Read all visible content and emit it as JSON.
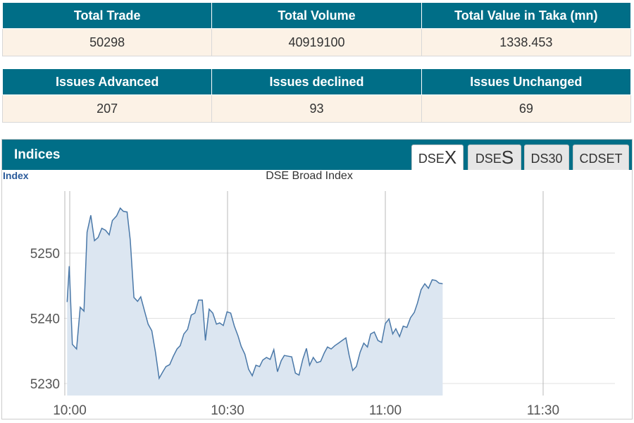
{
  "summary": {
    "headers": [
      "Total Trade",
      "Total Volume",
      "Total Value in Taka (mn)"
    ],
    "values": [
      "50298",
      "40919100",
      "1338.453"
    ]
  },
  "issues": {
    "headers": [
      "Issues Advanced",
      "Issues declined",
      "Issues Unchanged"
    ],
    "values": [
      "207",
      "93",
      "69"
    ]
  },
  "indices": {
    "title": "Indices",
    "tabs": [
      {
        "prefix": "DSE",
        "suffix": "X",
        "active": true
      },
      {
        "prefix": "DSE",
        "suffix": "S",
        "active": false
      },
      {
        "prefix": "DS30",
        "suffix": "",
        "active": false
      },
      {
        "prefix": "CDSET",
        "suffix": "",
        "active": false
      }
    ]
  },
  "colors": {
    "header_bg": "#006e87",
    "row_bg": "#fcf2e6",
    "line": "#4a78a8",
    "area_fill": "#dce6f1"
  },
  "chart_data": {
    "type": "area",
    "title": "DSE Broad Index",
    "ylabel": "Index",
    "xlabel": "",
    "x_ticks": [
      "10:00",
      "10:30",
      "11:00",
      "11:30"
    ],
    "y_ticks": [
      5230,
      5240,
      5250
    ],
    "ylim": [
      5228,
      5260
    ],
    "xlim_minutes": [
      -1,
      46
    ],
    "grid": true,
    "series": [
      {
        "points": [
          [
            -0.5,
            5242.5
          ],
          [
            -0.1,
            5248.0
          ],
          [
            0.5,
            5236.0
          ],
          [
            1.3,
            5235.3
          ],
          [
            2.0,
            5241.7
          ],
          [
            2.7,
            5241.1
          ],
          [
            3.3,
            5253.2
          ],
          [
            4.0,
            5255.8
          ],
          [
            4.7,
            5251.9
          ],
          [
            5.4,
            5252.4
          ],
          [
            6.1,
            5253.8
          ],
          [
            6.8,
            5253.5
          ],
          [
            7.5,
            5252.8
          ],
          [
            8.1,
            5255.0
          ],
          [
            8.9,
            5255.7
          ],
          [
            9.6,
            5256.9
          ],
          [
            10.2,
            5256.4
          ],
          [
            10.9,
            5256.3
          ],
          [
            11.5,
            5252.0
          ],
          [
            12.2,
            5243.2
          ],
          [
            12.9,
            5242.6
          ],
          [
            13.5,
            5243.3
          ],
          [
            14.2,
            5241.2
          ],
          [
            14.9,
            5239.1
          ],
          [
            15.6,
            5238.1
          ],
          [
            16.3,
            5234.8
          ],
          [
            17.0,
            5230.8
          ],
          [
            17.7,
            5231.8
          ],
          [
            18.3,
            5232.6
          ],
          [
            19.0,
            5232.9
          ],
          [
            19.7,
            5234.2
          ],
          [
            20.4,
            5235.3
          ],
          [
            21.0,
            5235.8
          ],
          [
            21.7,
            5237.6
          ],
          [
            22.4,
            5238.3
          ],
          [
            23.1,
            5240.5
          ],
          [
            23.8,
            5240.8
          ],
          [
            24.5,
            5242.8
          ],
          [
            25.2,
            5242.8
          ],
          [
            25.8,
            5236.6
          ],
          [
            26.5,
            5241.4
          ],
          [
            27.2,
            5240.8
          ],
          [
            27.9,
            5239.1
          ],
          [
            28.5,
            5239.3
          ],
          [
            29.2,
            5238.9
          ],
          [
            29.9,
            5241.0
          ],
          [
            30.6,
            5240.8
          ],
          [
            31.3,
            5238.8
          ],
          [
            32.0,
            5237.3
          ],
          [
            32.6,
            5235.7
          ],
          [
            33.3,
            5234.5
          ],
          [
            34.0,
            5232.2
          ],
          [
            34.7,
            5231.2
          ],
          [
            35.4,
            5232.8
          ],
          [
            36.1,
            5232.6
          ],
          [
            36.7,
            5233.6
          ],
          [
            37.4,
            5234.0
          ],
          [
            38.1,
            5233.7
          ],
          [
            38.8,
            5235.2
          ],
          [
            39.5,
            5231.8
          ],
          [
            40.2,
            5233.5
          ],
          [
            40.8,
            5234.3
          ],
          [
            41.5,
            5234.2
          ],
          [
            42.2,
            5234.1
          ],
          [
            42.9,
            5231.6
          ],
          [
            43.6,
            5231.3
          ],
          [
            44.3,
            5233.7
          ],
          [
            45.0,
            5235.4
          ],
          [
            45.6,
            5232.8
          ],
          [
            46.3,
            5234.0
          ],
          [
            47.0,
            5233.2
          ],
          [
            47.7,
            5233.4
          ],
          [
            48.4,
            5234.7
          ],
          [
            49.0,
            5235.6
          ],
          [
            49.7,
            5235.3
          ],
          [
            50.4,
            5235.8
          ],
          [
            51.1,
            5236.2
          ],
          [
            51.8,
            5236.6
          ],
          [
            52.5,
            5237.0
          ],
          [
            53.1,
            5234.4
          ],
          [
            53.8,
            5232.0
          ],
          [
            54.5,
            5232.6
          ],
          [
            55.2,
            5234.8
          ],
          [
            55.9,
            5236.2
          ],
          [
            56.6,
            5235.6
          ],
          [
            57.2,
            5237.6
          ],
          [
            57.9,
            5237.9
          ],
          [
            58.6,
            5236.6
          ],
          [
            59.3,
            5236.3
          ],
          [
            60.0,
            5239.2
          ],
          [
            60.7,
            5239.9
          ],
          [
            61.4,
            5237.6
          ],
          [
            62.0,
            5238.4
          ],
          [
            62.7,
            5237.2
          ],
          [
            63.4,
            5238.8
          ],
          [
            64.1,
            5238.6
          ],
          [
            64.8,
            5240.1
          ],
          [
            65.5,
            5240.9
          ],
          [
            66.1,
            5242.3
          ],
          [
            66.8,
            5244.4
          ],
          [
            67.5,
            5245.3
          ],
          [
            68.2,
            5244.6
          ],
          [
            68.9,
            5245.9
          ],
          [
            69.6,
            5245.8
          ],
          [
            70.2,
            5245.4
          ],
          [
            70.9,
            5245.3
          ]
        ]
      }
    ]
  }
}
